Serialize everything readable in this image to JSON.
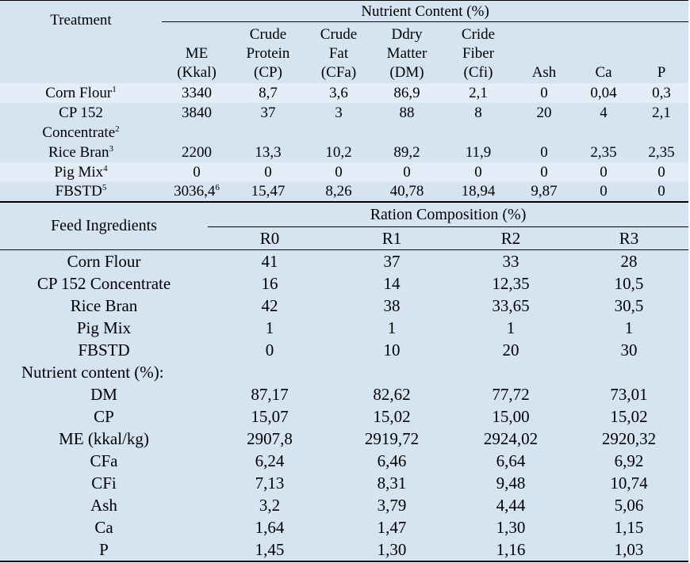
{
  "table1": {
    "treatment_label": "Treatment",
    "nutrient_header": "Nutrient Content (%)",
    "columns": [
      [
        "ME",
        "(Kkal)"
      ],
      [
        "Crude",
        "Protein",
        "(CP)"
      ],
      [
        "Crude",
        "Fat",
        "(CFa)"
      ],
      [
        "Ddry",
        "Matter",
        "(DM)"
      ],
      [
        "Cride",
        "Fiber",
        "(Cfi)"
      ],
      [
        "Ash"
      ],
      [
        "Ca"
      ],
      [
        "P"
      ]
    ],
    "rows": [
      {
        "name": "Corn Flour",
        "sup": "1",
        "values": [
          "3340",
          "8,7",
          "3,6",
          "86,9",
          "2,1",
          "0",
          "0,04",
          "0,3"
        ]
      },
      {
        "name_line1": "CP 152",
        "name_line2": "Concentrate",
        "sup": "2",
        "values": [
          "3840",
          "37",
          "3",
          "88",
          "8",
          "20",
          "4",
          "2,1"
        ]
      },
      {
        "name": "Rice Bran",
        "sup": "3",
        "values": [
          "2200",
          "13,3",
          "10,2",
          "89,2",
          "11,9",
          "0",
          "2,35",
          "2,35"
        ]
      },
      {
        "name": "Pig Mix",
        "sup": "4",
        "values": [
          "0",
          "0",
          "0",
          "0",
          "0",
          "0",
          "0",
          "0"
        ]
      },
      {
        "name": "FBSTD",
        "sup": "5",
        "me": "3036,4",
        "me_sup": "6",
        "values": [
          "15,47",
          "8,26",
          "40,78",
          "18,94",
          "9,87",
          "0",
          "0"
        ]
      }
    ]
  },
  "table2": {
    "feed_label": "Feed Ingredients",
    "ration_header": "Ration Composition (%)",
    "columns": [
      "R0",
      "R1",
      "R2",
      "R3"
    ],
    "rows": [
      {
        "name": "Corn Flour",
        "values": [
          "41",
          "37",
          "33",
          "28"
        ]
      },
      {
        "name": "CP 152 Concentrate",
        "values": [
          "16",
          "14",
          "12,35",
          "10,5"
        ]
      },
      {
        "name": "Rice Bran",
        "values": [
          "42",
          "38",
          "33,65",
          "30,5"
        ]
      },
      {
        "name": "Pig Mix",
        "values": [
          "1",
          "1",
          "1",
          "1"
        ]
      },
      {
        "name": "FBSTD",
        "values": [
          "0",
          "10",
          "20",
          "30"
        ]
      }
    ],
    "nutrient_label": "Nutrient content (%):",
    "nutrient_rows": [
      {
        "name": "DM",
        "values": [
          "87,17",
          "82,62",
          "77,72",
          "73,01"
        ]
      },
      {
        "name": "CP",
        "values": [
          "15,07",
          "15,02",
          "15,00",
          "15,02"
        ]
      },
      {
        "name": "ME (kkal/kg)",
        "values": [
          "2907,8",
          "2919,72",
          "2924,02",
          "2920,32"
        ]
      },
      {
        "name": "CFa",
        "values": [
          "6,24",
          "6,46",
          "6,64",
          "6,92"
        ]
      },
      {
        "name": "CFi",
        "values": [
          "7,13",
          "8,31",
          "9,48",
          "10,74"
        ]
      },
      {
        "name": "Ash",
        "values": [
          "3,2",
          "3,79",
          "4,44",
          "5,06"
        ]
      },
      {
        "name": "Ca",
        "values": [
          "1,64",
          "1,47",
          "1,30",
          "1,15"
        ]
      },
      {
        "name": "P",
        "values": [
          "1,45",
          "1,30",
          "1,16",
          "1,03"
        ]
      }
    ]
  }
}
